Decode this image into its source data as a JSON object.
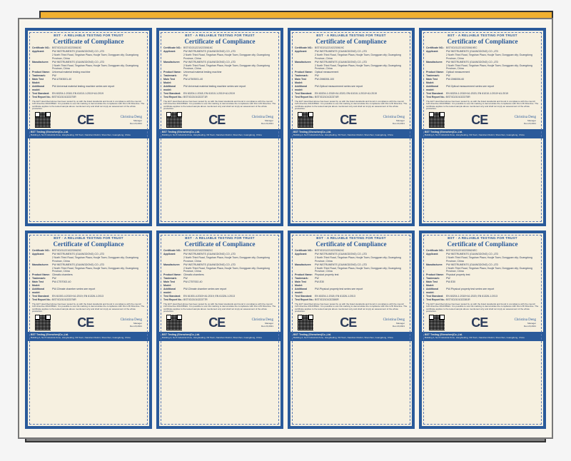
{
  "header_brand": "BST",
  "header_tagline": "A RELIABLE TESTING FOR TRUST",
  "certificate_title": "Certificate of Compliance",
  "ce_mark_text": "CE",
  "body_text": "The EUT described above has been tested by us with the listed standards and found in compliance with the council LVD directive 2014/35/EU. It is possible to use CE marking to demonstrate the compliance with this LVD Directive. The certificate applies to the tested sample above mentioned only and shall not imply an assessment of the whole production.",
  "signature": {
    "name": "Christina Deng",
    "role": "Manager",
    "date": "Dec.23,2021"
  },
  "footer": {
    "company": "BST Testing (Shenzhen)Co.,Ltd.",
    "address": "Building A, No.5 Industrial Zone, Honghualing, Xili Town, Nanshan District, Shenzhen, Guangdong, China"
  },
  "common_fields": {
    "applicant_label": "Applicant:",
    "manufacturer_label": "Manufacturer:",
    "certno_label": "Certificate NO.:",
    "product_label": "Product Name:",
    "trademark_label": "Trademark:",
    "model_label": "Main Test Model:",
    "additional_label": "Additional model:",
    "standard_label": "Test Standard:",
    "report_label": "Test Report No.:",
    "applicant": "PW INSTRUMENTS (GUANGDONG) CO.,LTD",
    "address": "2 North Third Road, Tingshan Plaza, Houjie Town, Dongguan city, Guangdong Province, China",
    "trademark": "PW"
  },
  "certificates": [
    {
      "cert_no": "BSTXD21122102230615C",
      "product": "Universal material testing machine",
      "model": "PW-UTM3001-40",
      "additional": "PW-Universal material testing machine series see report",
      "standard": "EN 60204-1:2018; EN 61010-1:2010+A1:2019",
      "report": "BSTXD2101022370R"
    },
    {
      "cert_no": "BSTXD21122102230616C",
      "product": "Universal material testing machine",
      "model": "PW-UTM3001-40",
      "additional": "PW-Universal material testing machine series see report",
      "standard": "EN 60204-1:2018; EN 61010-1:2010+A1:2019",
      "report": "BSTXD2101022371R"
    },
    {
      "cert_no": "BSTXD21122102230619C",
      "product": "Optical measurement",
      "model": "PW-OM6006-100",
      "additional": "PW-Optical measurement series see report",
      "standard": "EN 60204-1:2018+A1:2020; EN 61010-1:2010+A1:2019",
      "report": "BSTXD2101022374R"
    },
    {
      "cert_no": "BSTXD21122102230619EC",
      "product": "Optical measurement",
      "model": "PW-OM6006-60",
      "additional": "PW-Optical measurement series see report",
      "standard": "EN 60204-1:2018+A1:2020; EN 61010-1:2010+A1:2019",
      "report": "BSTXD2101022375R"
    },
    {
      "cert_no": "BSTXD21122102230620C",
      "product": "Climatic chambers",
      "model": "PW-CT5T002-40",
      "additional": "PW-Climate chamber series see report",
      "standard": "EN 61000-4:2015+A1:2019; EN 61326-1:2013",
      "report": "BSTXD2101022376R"
    },
    {
      "cert_no": "BSTXD21122102230621C",
      "product": "Climatic chambers",
      "model": "PW-CT5T002-40",
      "additional": "PW-Climate chamber series see report",
      "standard": "EN 61000-4:2015+A1:2019; EN 61326-1:2013",
      "report": "BSTXD2101022377R"
    },
    {
      "cert_no": "BSTXD21122102230624C",
      "product": "Physical property test",
      "model": "PW-E30",
      "additional": "PW-Physical property test series see report",
      "standard": "EN 60204-1:2018; EN 61326-1:2013",
      "report": "BSTXD2101022380R"
    },
    {
      "cert_no": "BSTXD21122102230624EC",
      "product": "Physical property test",
      "model": "PW-E30",
      "additional": "PW-Physical property test series see report",
      "standard": "EN 60204-1:2018+A1:2020; EN 61326-1:2013",
      "report": "BSTXD2101022381R"
    }
  ]
}
